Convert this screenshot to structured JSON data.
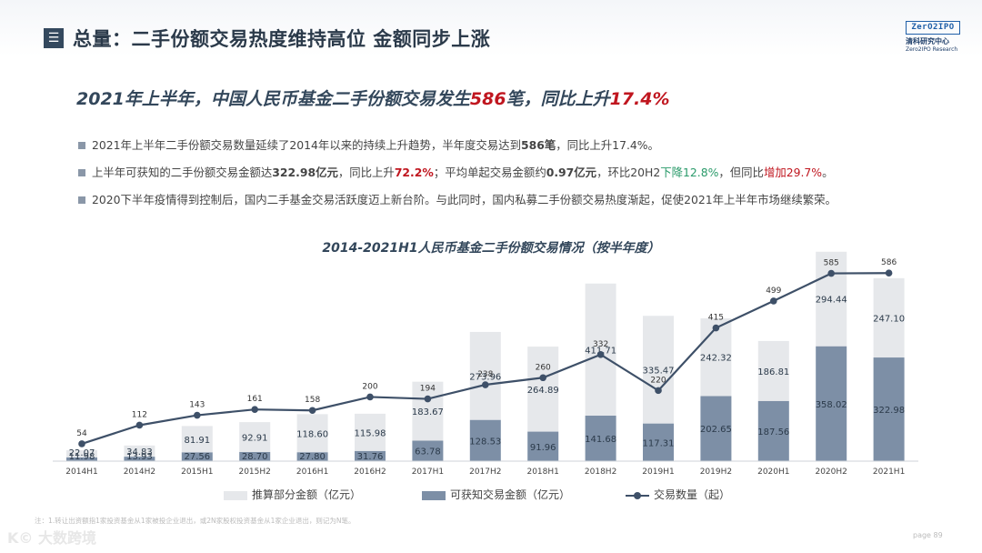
{
  "header": {
    "menu_symbol": "☰",
    "title": "总量：二手份额交易热度维持高位 金额同步上涨",
    "logo_box": "ZerO2IPO",
    "logo_cn": "清科研究中心",
    "logo_en": "Zero2IPO Research"
  },
  "headline": {
    "part1": "2021年上半年，中国人民币基金二手份额交易发生",
    "value1": "586",
    "part2": "笔，同比上升",
    "value2": "17.4%"
  },
  "bullets": [
    {
      "text_a": "2021年上半年二手份额交易数量延续了2014年以来的持续上升趋势，半年度交易达到",
      "bold_a": "586笔",
      "text_b": "，同比上升17.4%。"
    },
    {
      "text_a": "上半年可获知的二手份额交易金额达",
      "bold_a": "322.98亿元",
      "text_b": "，同比上升",
      "red_a": "72.2%",
      "text_c": "；平均单起交易金额约",
      "bold_b": "0.97亿元",
      "text_d": "，环比20H2",
      "green_a": "下降12.8%",
      "text_e": "，但同比",
      "red_b": "增加29.7%",
      "text_f": "。"
    },
    {
      "text_a": "2020下半年疫情得到控制后，国内二手基金交易活跃度迈上新台阶。与此同时，国内私募二手份额交易热度渐起，促使2021年上半年市场继续繁荣。"
    }
  ],
  "chart_data": {
    "type": "bar",
    "title": "2014-2021H1人民币基金二手份额交易情况（按半年度）",
    "categories": [
      "2014H1",
      "2014H2",
      "2015H1",
      "2015H2",
      "2016H1",
      "2016H2",
      "2017H1",
      "2017H2",
      "2018H1",
      "2018H2",
      "2019H1",
      "2019H2",
      "2020H1",
      "2020H2",
      "2021H1"
    ],
    "series": [
      {
        "name": "推算部分金额（亿元）",
        "kind": "stacked-bar",
        "color": "#e6e8eb",
        "values": [
          22.07,
          34.83,
          81.91,
          92.91,
          118.6,
          115.98,
          183.67,
          273.96,
          264.89,
          411.71,
          335.47,
          242.32,
          186.81,
          294.44,
          247.1
        ]
      },
      {
        "name": "可获知交易金额（亿元）",
        "kind": "stacked-bar",
        "color": "#7d8fa6",
        "values": [
          11.98,
          13.93,
          27.56,
          28.7,
          27.8,
          31.76,
          63.78,
          128.53,
          91.96,
          141.68,
          117.31,
          202.65,
          187.56,
          358.02,
          322.98
        ]
      },
      {
        "name": "交易数量（起）",
        "kind": "line",
        "color": "#3e5068",
        "values": [
          54,
          112,
          143,
          161,
          158,
          200,
          194,
          238,
          260,
          332,
          220,
          415,
          499,
          585,
          586
        ]
      }
    ],
    "bar_ylim": [
      0,
      700
    ],
    "line_ylim": [
      0,
      700
    ],
    "grid": false,
    "legend": "bottom"
  },
  "footnote": "注：1.转让出资额指1家投资基金从1家被投企业退出，或2N家股权投资基金从1家企业退出，则记为N笔。",
  "page": "page 89",
  "watermark": "K© 大数跨境"
}
